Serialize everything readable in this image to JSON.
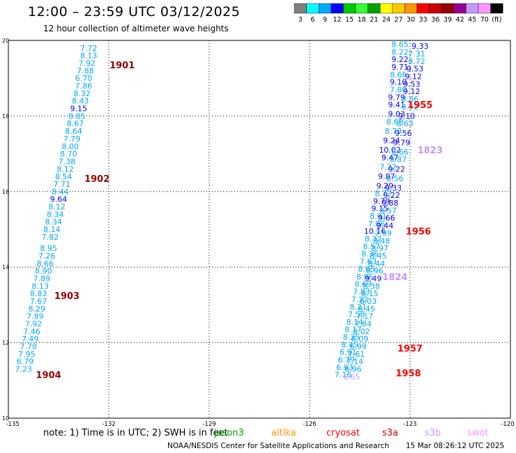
{
  "title": "12:00 – 23:59 UTC 03/12/2025",
  "subtitle": "12 hour collection of altimeter wave heights",
  "colorbar": {
    "colors": [
      "#808080",
      "#00ffff",
      "#00a8ff",
      "#0000ff",
      "#00c800",
      "#32ff32",
      "#00a000",
      "#ffff00",
      "#ffc800",
      "#ff9600",
      "#ff0000",
      "#c80000",
      "#960000",
      "#960096",
      "#c896ff",
      "#ff96ff",
      "#000000"
    ],
    "labels": [
      "3",
      "6",
      "9",
      "12",
      "15",
      "18",
      "21",
      "24",
      "27",
      "30",
      "33",
      "36",
      "39",
      "42",
      "45",
      "70",
      "(ft)"
    ]
  },
  "chart_data": {
    "type": "scatter",
    "xlim": [
      -135,
      -120
    ],
    "ylim": [
      10,
      20
    ],
    "x_ticks": [
      "-135",
      "-132",
      "-129",
      "-126",
      "-123",
      "-120"
    ],
    "y_ticks": [
      "10",
      "12",
      "14",
      "16",
      "18",
      "20"
    ],
    "grid": true,
    "track_points": [
      {
        "x": -132.6,
        "y": 19.8,
        "t": "7.72",
        "c": "#00a8ff"
      },
      {
        "x": -132.6,
        "y": 19.6,
        "t": "8.13",
        "c": "#00a8ff"
      },
      {
        "x": -132.65,
        "y": 19.4,
        "t": "7.92",
        "c": "#00a8ff"
      },
      {
        "x": -132.7,
        "y": 19.2,
        "t": "7.88",
        "c": "#00a8ff"
      },
      {
        "x": -132.75,
        "y": 19.0,
        "t": "6.70",
        "c": "#00a8ff"
      },
      {
        "x": -132.75,
        "y": 18.8,
        "t": "7.86",
        "c": "#00a8ff"
      },
      {
        "x": -132.8,
        "y": 18.6,
        "t": "8.32",
        "c": "#00a8ff"
      },
      {
        "x": -132.85,
        "y": 18.4,
        "t": "8.43",
        "c": "#00a8ff"
      },
      {
        "x": -132.9,
        "y": 18.2,
        "t": "9.15",
        "c": "#0000ff"
      },
      {
        "x": -132.95,
        "y": 18.0,
        "t": "8.85",
        "c": "#00a8ff"
      },
      {
        "x": -133.0,
        "y": 17.8,
        "t": "8.67",
        "c": "#00a8ff"
      },
      {
        "x": -133.05,
        "y": 17.6,
        "t": "8.64",
        "c": "#00a8ff"
      },
      {
        "x": -133.1,
        "y": 17.4,
        "t": "7.79",
        "c": "#00a8ff"
      },
      {
        "x": -133.15,
        "y": 17.2,
        "t": "8.00",
        "c": "#00a8ff"
      },
      {
        "x": -133.2,
        "y": 17.0,
        "t": "8.70",
        "c": "#00a8ff"
      },
      {
        "x": -133.25,
        "y": 16.8,
        "t": "7.38",
        "c": "#00a8ff"
      },
      {
        "x": -133.3,
        "y": 16.6,
        "t": "8.12",
        "c": "#00a8ff"
      },
      {
        "x": -133.35,
        "y": 16.4,
        "t": "8.54",
        "c": "#00a8ff"
      },
      {
        "x": -133.4,
        "y": 16.2,
        "t": "7.71",
        "c": "#00a8ff"
      },
      {
        "x": -133.45,
        "y": 16.0,
        "t": "8.44",
        "c": "#00a8ff"
      },
      {
        "x": -133.5,
        "y": 15.8,
        "t": "9.64",
        "c": "#0000ff"
      },
      {
        "x": -133.55,
        "y": 15.6,
        "t": "8.12",
        "c": "#00a8ff"
      },
      {
        "x": -133.6,
        "y": 15.4,
        "t": "8.34",
        "c": "#00a8ff"
      },
      {
        "x": -133.65,
        "y": 15.2,
        "t": "8.34",
        "c": "#00a8ff"
      },
      {
        "x": -133.7,
        "y": 15.0,
        "t": "8.14",
        "c": "#00a8ff"
      },
      {
        "x": -133.75,
        "y": 14.8,
        "t": "7.82",
        "c": "#00a8ff"
      },
      {
        "x": -133.8,
        "y": 14.5,
        "t": "8.95",
        "c": "#00a8ff"
      },
      {
        "x": -133.85,
        "y": 14.3,
        "t": "7.26",
        "c": "#00a8ff"
      },
      {
        "x": -133.9,
        "y": 14.1,
        "t": "8.66",
        "c": "#00a8ff"
      },
      {
        "x": -133.95,
        "y": 13.9,
        "t": "8.90",
        "c": "#00a8ff"
      },
      {
        "x": -134.0,
        "y": 13.7,
        "t": "7.89",
        "c": "#00a8ff"
      },
      {
        "x": -134.05,
        "y": 13.5,
        "t": "8.13",
        "c": "#00a8ff"
      },
      {
        "x": -134.1,
        "y": 13.3,
        "t": "8.83",
        "c": "#00a8ff"
      },
      {
        "x": -134.1,
        "y": 13.1,
        "t": "7.67",
        "c": "#00a8ff"
      },
      {
        "x": -134.15,
        "y": 12.9,
        "t": "8.29",
        "c": "#00a8ff"
      },
      {
        "x": -134.2,
        "y": 12.7,
        "t": "7.89",
        "c": "#00a8ff"
      },
      {
        "x": -134.25,
        "y": 12.5,
        "t": "7.92",
        "c": "#00a8ff"
      },
      {
        "x": -134.3,
        "y": 12.3,
        "t": "7.46",
        "c": "#00a8ff"
      },
      {
        "x": -134.35,
        "y": 12.1,
        "t": "7.49",
        "c": "#00a8ff"
      },
      {
        "x": -134.4,
        "y": 11.9,
        "t": "7.70",
        "c": "#00a8ff"
      },
      {
        "x": -134.45,
        "y": 11.7,
        "t": "7.95",
        "c": "#00a8ff"
      },
      {
        "x": -134.5,
        "y": 11.5,
        "t": "6.79",
        "c": "#00a8ff"
      },
      {
        "x": -134.55,
        "y": 11.3,
        "t": "7.23",
        "c": "#00a8ff"
      },
      {
        "x": -123.3,
        "y": 19.9,
        "t": "8.65",
        "c": "#00a8ff"
      },
      {
        "x": -122.7,
        "y": 19.85,
        "t": "9.33",
        "c": "#0000ff"
      },
      {
        "x": -123.3,
        "y": 19.7,
        "t": "8.22",
        "c": "#00a8ff"
      },
      {
        "x": -122.8,
        "y": 19.65,
        "t": "7.31",
        "c": "#00a8ff"
      },
      {
        "x": -123.3,
        "y": 19.5,
        "t": "9.22",
        "c": "#0000ff"
      },
      {
        "x": -122.8,
        "y": 19.45,
        "t": "8.72",
        "c": "#00a8ff"
      },
      {
        "x": -123.3,
        "y": 19.3,
        "t": "9.71",
        "c": "#0000ff"
      },
      {
        "x": -122.85,
        "y": 19.25,
        "t": "9.53",
        "c": "#0000ff"
      },
      {
        "x": -123.35,
        "y": 19.1,
        "t": "8.66",
        "c": "#00a8ff"
      },
      {
        "x": -122.9,
        "y": 19.05,
        "t": "9.12",
        "c": "#0000ff"
      },
      {
        "x": -123.35,
        "y": 18.9,
        "t": "9.10",
        "c": "#0000ff"
      },
      {
        "x": -122.95,
        "y": 18.85,
        "t": "9.53",
        "c": "#0000ff"
      },
      {
        "x": -123.35,
        "y": 18.7,
        "t": "7.80",
        "c": "#00a8ff"
      },
      {
        "x": -122.95,
        "y": 18.65,
        "t": "9.12",
        "c": "#0000ff"
      },
      {
        "x": -123.4,
        "y": 18.5,
        "t": "9.79",
        "c": "#0000ff"
      },
      {
        "x": -123.0,
        "y": 18.45,
        "t": "8.86",
        "c": "#00a8ff"
      },
      {
        "x": -123.4,
        "y": 18.3,
        "t": "9.41",
        "c": "#0000ff"
      },
      {
        "x": -123.0,
        "y": 18.25,
        "t": "8.52",
        "c": "#00a8ff"
      },
      {
        "x": -123.4,
        "y": 18.05,
        "t": "9.03",
        "c": "#0000ff"
      },
      {
        "x": -123.1,
        "y": 18.0,
        "t": "9.10",
        "c": "#0000ff"
      },
      {
        "x": -123.45,
        "y": 17.85,
        "t": "8.68",
        "c": "#00a8ff"
      },
      {
        "x": -123.15,
        "y": 17.8,
        "t": "8.63",
        "c": "#00a8ff"
      },
      {
        "x": -123.5,
        "y": 17.6,
        "t": "8.79",
        "c": "#00a8ff"
      },
      {
        "x": -123.2,
        "y": 17.55,
        "t": "9.56",
        "c": "#0000ff"
      },
      {
        "x": -123.55,
        "y": 17.35,
        "t": "9.24",
        "c": "#0000ff"
      },
      {
        "x": -123.25,
        "y": 17.3,
        "t": "9.79",
        "c": "#0000ff"
      },
      {
        "x": -123.6,
        "y": 17.1,
        "t": "10.02",
        "c": "#0000ff"
      },
      {
        "x": -123.3,
        "y": 17.05,
        "t": "8.66",
        "c": "#00a8ff"
      },
      {
        "x": -123.6,
        "y": 16.9,
        "t": "9.47",
        "c": "#0000ff"
      },
      {
        "x": -123.35,
        "y": 16.85,
        "t": "8.87",
        "c": "#00a8ff"
      },
      {
        "x": -123.65,
        "y": 16.65,
        "t": "7.22",
        "c": "#00a8ff"
      },
      {
        "x": -123.4,
        "y": 16.6,
        "t": "9.22",
        "c": "#0000ff"
      },
      {
        "x": -123.7,
        "y": 16.4,
        "t": "9.87",
        "c": "#0000ff"
      },
      {
        "x": -123.45,
        "y": 16.35,
        "t": "8.56",
        "c": "#00a8ff"
      },
      {
        "x": -123.75,
        "y": 16.15,
        "t": "9.29",
        "c": "#0000ff"
      },
      {
        "x": -123.5,
        "y": 16.1,
        "t": "9.33",
        "c": "#0000ff"
      },
      {
        "x": -123.8,
        "y": 15.95,
        "t": "8.72",
        "c": "#00a8ff"
      },
      {
        "x": -123.55,
        "y": 15.9,
        "t": "9.22",
        "c": "#0000ff"
      },
      {
        "x": -123.85,
        "y": 15.75,
        "t": "9.79",
        "c": "#0000ff"
      },
      {
        "x": -123.6,
        "y": 15.7,
        "t": "9.88",
        "c": "#0000ff"
      },
      {
        "x": -123.9,
        "y": 15.55,
        "t": "9.15",
        "c": "#0000ff"
      },
      {
        "x": -123.65,
        "y": 15.5,
        "t": "8.57",
        "c": "#00a8ff"
      },
      {
        "x": -123.95,
        "y": 15.35,
        "t": "8.91",
        "c": "#00a8ff"
      },
      {
        "x": -123.7,
        "y": 15.3,
        "t": "9.66",
        "c": "#0000ff"
      },
      {
        "x": -124.0,
        "y": 15.15,
        "t": "7.86",
        "c": "#00a8ff"
      },
      {
        "x": -123.75,
        "y": 15.1,
        "t": "9.44",
        "c": "#0000ff"
      },
      {
        "x": -124.05,
        "y": 14.95,
        "t": "10.16",
        "c": "#0000ff"
      },
      {
        "x": -123.8,
        "y": 14.9,
        "t": "7.59",
        "c": "#00a8ff"
      },
      {
        "x": -124.1,
        "y": 14.75,
        "t": "8.32",
        "c": "#00a8ff"
      },
      {
        "x": -123.85,
        "y": 14.7,
        "t": "8.48",
        "c": "#00a8ff"
      },
      {
        "x": -124.15,
        "y": 14.55,
        "t": "8.57",
        "c": "#00a8ff"
      },
      {
        "x": -123.9,
        "y": 14.5,
        "t": "8.97",
        "c": "#00a8ff"
      },
      {
        "x": -124.2,
        "y": 14.35,
        "t": "8.36",
        "c": "#00a8ff"
      },
      {
        "x": -123.95,
        "y": 14.3,
        "t": "8.45",
        "c": "#00a8ff"
      },
      {
        "x": -124.25,
        "y": 14.15,
        "t": "7.63",
        "c": "#00a8ff"
      },
      {
        "x": -124.0,
        "y": 14.1,
        "t": "8.44",
        "c": "#00a8ff"
      },
      {
        "x": -124.3,
        "y": 13.95,
        "t": "8.65",
        "c": "#00a8ff"
      },
      {
        "x": -124.05,
        "y": 13.9,
        "t": "8.96",
        "c": "#00a8ff"
      },
      {
        "x": -124.35,
        "y": 13.75,
        "t": "8.96",
        "c": "#00a8ff"
      },
      {
        "x": -124.1,
        "y": 13.7,
        "t": "9.49",
        "c": "#0000ff"
      },
      {
        "x": -124.4,
        "y": 13.55,
        "t": "8.69",
        "c": "#00a8ff"
      },
      {
        "x": -124.15,
        "y": 13.5,
        "t": "8.38",
        "c": "#00a8ff"
      },
      {
        "x": -124.45,
        "y": 13.35,
        "t": "7.83",
        "c": "#00a8ff"
      },
      {
        "x": -124.2,
        "y": 13.3,
        "t": "8.15",
        "c": "#00a8ff"
      },
      {
        "x": -124.5,
        "y": 13.15,
        "t": "7.22",
        "c": "#00a8ff"
      },
      {
        "x": -124.25,
        "y": 13.1,
        "t": "8.03",
        "c": "#00a8ff"
      },
      {
        "x": -124.55,
        "y": 12.95,
        "t": "8.21",
        "c": "#00a8ff"
      },
      {
        "x": -124.3,
        "y": 12.9,
        "t": "8.45",
        "c": "#00a8ff"
      },
      {
        "x": -124.6,
        "y": 12.75,
        "t": "7.58",
        "c": "#00a8ff"
      },
      {
        "x": -124.35,
        "y": 12.7,
        "t": "7.17",
        "c": "#00a8ff"
      },
      {
        "x": -124.65,
        "y": 12.55,
        "t": "8.14",
        "c": "#00a8ff"
      },
      {
        "x": -124.4,
        "y": 12.5,
        "t": "7.84",
        "c": "#00a8ff"
      },
      {
        "x": -124.7,
        "y": 12.35,
        "t": "8.17",
        "c": "#00a8ff"
      },
      {
        "x": -124.45,
        "y": 12.3,
        "t": "8.02",
        "c": "#00a8ff"
      },
      {
        "x": -124.75,
        "y": 12.15,
        "t": "8.25",
        "c": "#00a8ff"
      },
      {
        "x": -124.5,
        "y": 12.1,
        "t": "8.09",
        "c": "#00a8ff"
      },
      {
        "x": -124.8,
        "y": 11.95,
        "t": "8.45",
        "c": "#00a8ff"
      },
      {
        "x": -124.55,
        "y": 11.9,
        "t": "6.99",
        "c": "#00a8ff"
      },
      {
        "x": -124.85,
        "y": 11.75,
        "t": "6.91",
        "c": "#00a8ff"
      },
      {
        "x": -124.6,
        "y": 11.7,
        "t": "7.61",
        "c": "#00a8ff"
      },
      {
        "x": -124.9,
        "y": 11.55,
        "t": "6.79",
        "c": "#00a8ff"
      },
      {
        "x": -124.65,
        "y": 11.5,
        "t": "7.14",
        "c": "#00a8ff"
      },
      {
        "x": -124.95,
        "y": 11.35,
        "t": "6.93",
        "c": "#00a8ff"
      },
      {
        "x": -124.7,
        "y": 11.3,
        "t": "6.96",
        "c": "#00a8ff"
      },
      {
        "x": -125.0,
        "y": 11.15,
        "t": "7.16",
        "c": "#00a8ff"
      },
      {
        "x": -124.75,
        "y": 11.1,
        "t": "6.65",
        "c": "#c896ff"
      }
    ],
    "time_labels": [
      {
        "x": -131.6,
        "y": 19.35,
        "t": "1901",
        "c": "#960000"
      },
      {
        "x": -132.35,
        "y": 16.35,
        "t": "1902",
        "c": "#960000"
      },
      {
        "x": -133.25,
        "y": 13.25,
        "t": "1903",
        "c": "#960000"
      },
      {
        "x": -133.8,
        "y": 11.15,
        "t": "1904",
        "c": "#960000"
      },
      {
        "x": -122.7,
        "y": 18.3,
        "t": "1955",
        "c": "#ff0000"
      },
      {
        "x": -122.4,
        "y": 17.1,
        "t": "1823",
        "c": "#c896ff"
      },
      {
        "x": -122.75,
        "y": 14.95,
        "t": "1956",
        "c": "#ff0000"
      },
      {
        "x": -123.45,
        "y": 13.75,
        "t": "1824",
        "c": "#c896ff"
      },
      {
        "x": -123.0,
        "y": 11.85,
        "t": "1957",
        "c": "#ff0000"
      },
      {
        "x": -123.05,
        "y": 11.2,
        "t": "1958",
        "c": "#ff0000"
      }
    ]
  },
  "footer": {
    "note": "note: 1) Time is in UTC; 2) SWH is in feet",
    "credit": "NOAA/NESDIS Center for Satellite Applications and Research",
    "timestamp": "15 Mar 08:26:12 UTC 2025",
    "satellites": [
      {
        "name": "jason3",
        "color": "#00a000"
      },
      {
        "name": "altika",
        "color": "#ff9600"
      },
      {
        "name": "cryosat",
        "color": "#ff0000"
      },
      {
        "name": "s3a",
        "color": "#c80000"
      },
      {
        "name": "s3b",
        "color": "#c896ff"
      },
      {
        "name": "swot",
        "color": "#ff96ff"
      }
    ]
  }
}
